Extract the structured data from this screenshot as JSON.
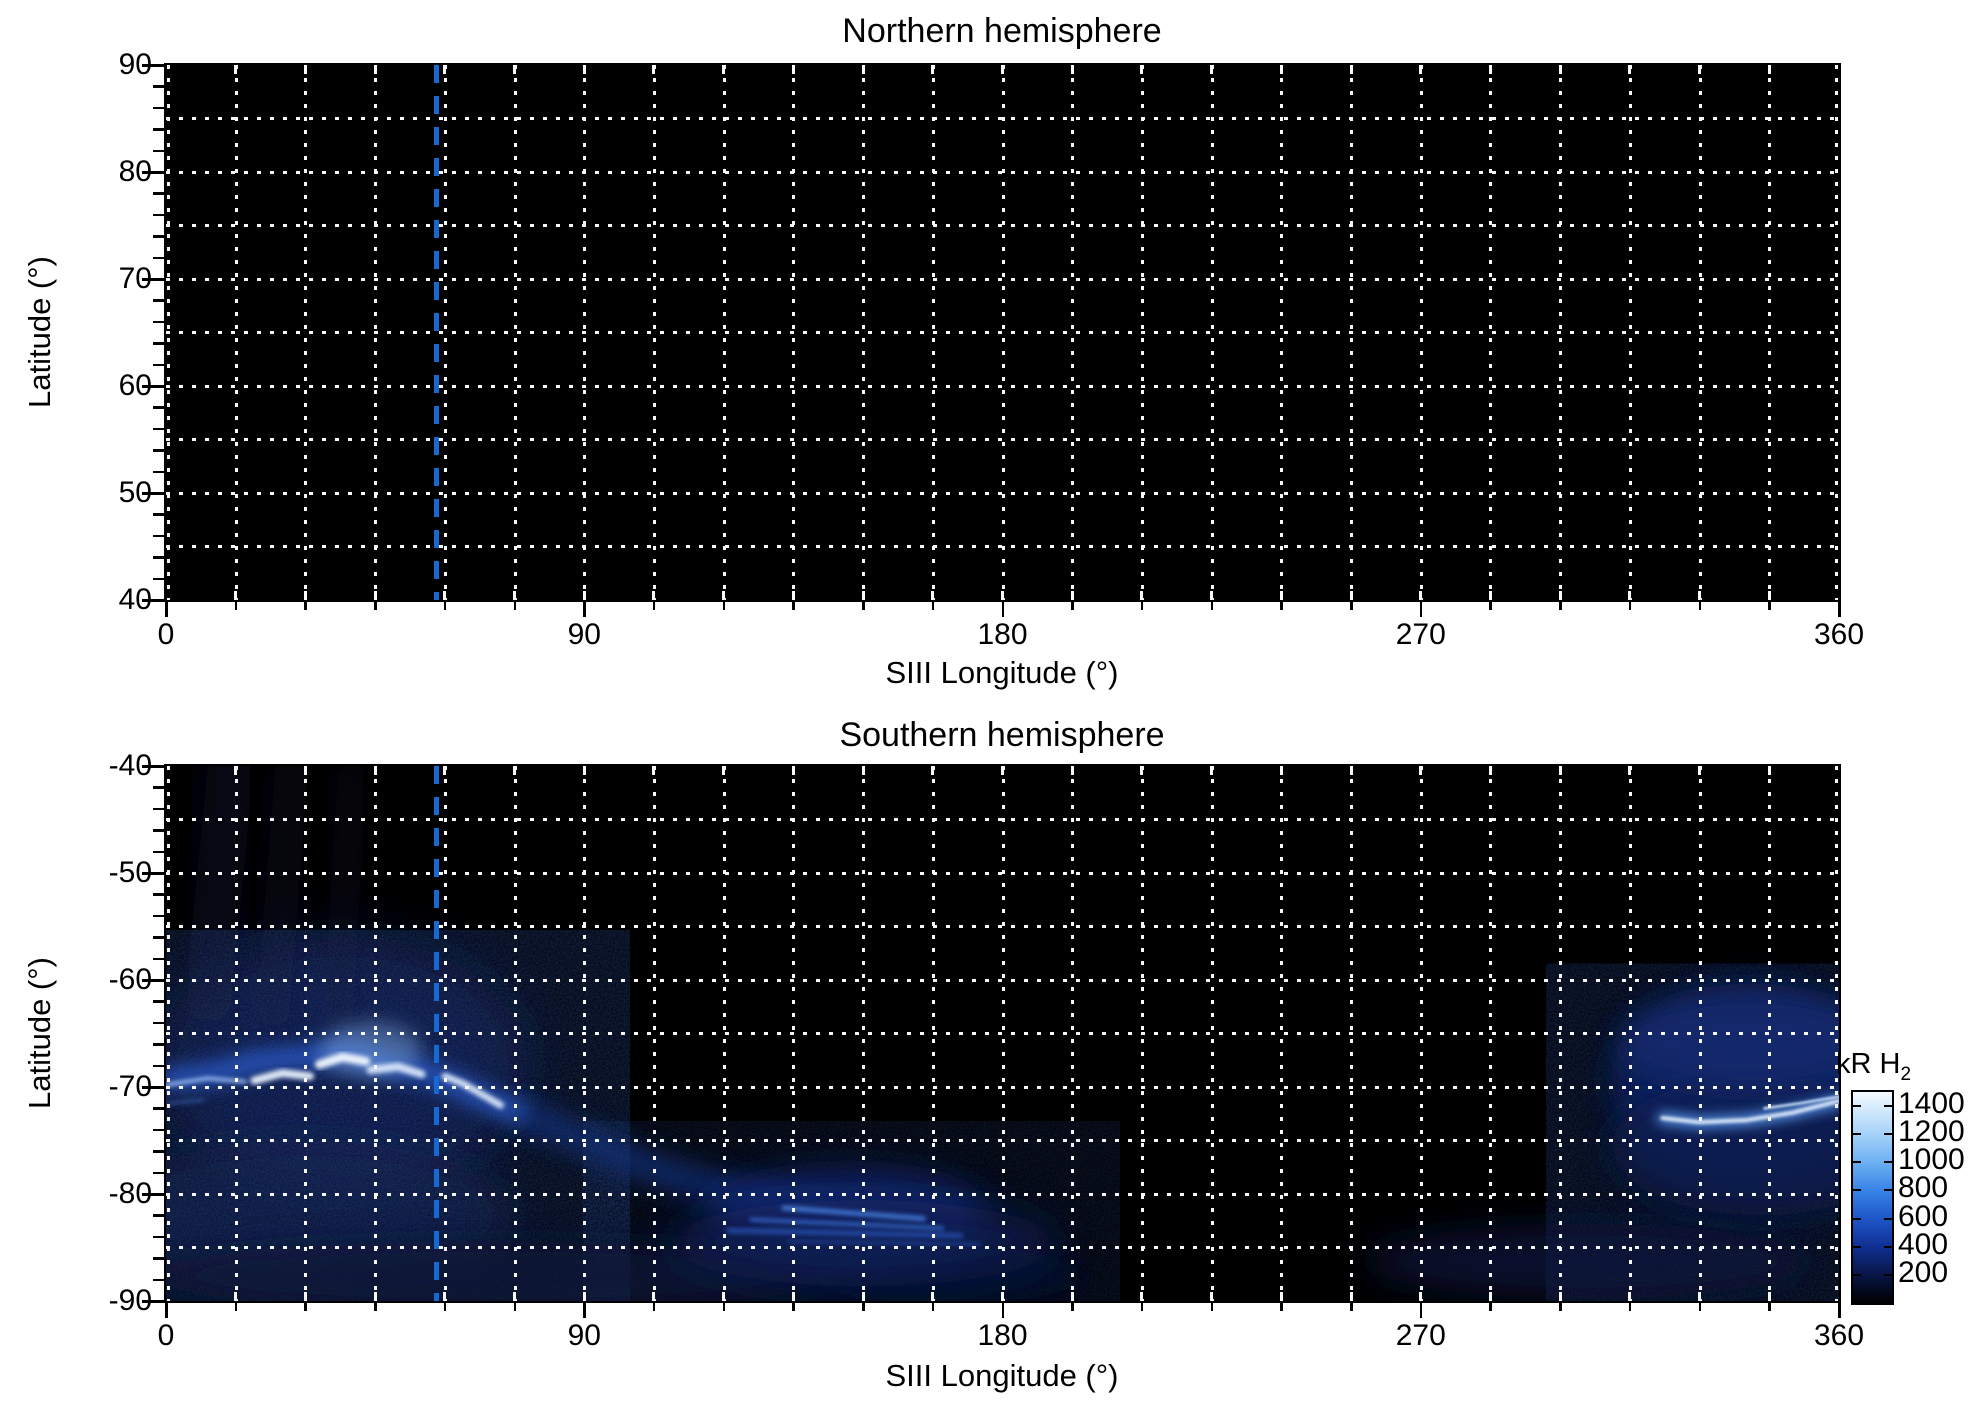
{
  "titles": {
    "north": "Northern hemisphere",
    "south": "Southern hemisphere"
  },
  "axes": {
    "xlabel": "SIII Longitude (°)",
    "ylabel": "Latitude (°)"
  },
  "north_axis": {
    "xticklabels": [
      "0",
      "90",
      "180",
      "270",
      "360"
    ],
    "yticklabels": [
      "90",
      "80",
      "70",
      "60",
      "50",
      "40"
    ]
  },
  "south_axis": {
    "xticklabels": [
      "0",
      "90",
      "180",
      "270",
      "360"
    ],
    "yticklabels": [
      "-40",
      "-50",
      "-60",
      "-70",
      "-80",
      "-90"
    ]
  },
  "colorbar": {
    "label_main": "kR H",
    "label_sub": "2",
    "ticklabels": [
      "1400",
      "1200",
      "1000",
      "800",
      "600",
      "400",
      "200"
    ]
  },
  "marker": {
    "color": "#1668d2"
  },
  "chart_data": {
    "type": "heatmap",
    "reference_longitude_deg": 58,
    "colorbar": {
      "label": "kR H2",
      "min": 0,
      "max": 1500,
      "tick_values": [
        1400,
        1200,
        1000,
        800,
        600,
        400,
        200
      ]
    },
    "panels": [
      {
        "title": "Northern hemisphere",
        "xlabel": "SIII Longitude (°)",
        "ylabel": "Latitude (°)",
        "xlim": [
          0,
          360
        ],
        "ylim": [
          40,
          90
        ],
        "xtick_values": [
          0,
          90,
          180,
          270,
          360
        ],
        "ytick_values": [
          90,
          80,
          70,
          60,
          50,
          40
        ],
        "grid_x_step_deg": 15,
        "grid_y_step_deg": 5,
        "emission": "none — panel is entirely black",
        "features": []
      },
      {
        "title": "Southern hemisphere",
        "xlabel": "SIII Longitude (°)",
        "ylabel": "Latitude (°)",
        "xlim": [
          0,
          360
        ],
        "ylim": [
          -90,
          -40
        ],
        "xtick_values": [
          0,
          90,
          180,
          270,
          360
        ],
        "ytick_values": [
          -40,
          -50,
          -60,
          -70,
          -80,
          -90
        ],
        "grid_x_step_deg": 15,
        "grid_y_step_deg": 5,
        "emission": "main auroral oval arc near lat -68/-72 over lon 0-75 (peaks ~1400 kR), diffuse band descending to lat -82 near lon 100-175 (~400-700 kR), bright arc lon 320-360 at lat -71/-73 (~1200 kR), faint emission near -85/-90",
        "features": [
          {
            "kind": "blob",
            "center": [
              38,
              -68
            ],
            "rlon": 40,
            "rlat": 12,
            "color": "#0b1640",
            "blur": 28,
            "opacity": 0.8
          },
          {
            "kind": "blob",
            "center": [
              30,
              -82
            ],
            "rlon": 45,
            "rlat": 7,
            "color": "#091338",
            "blur": 24,
            "opacity": 0.75
          },
          {
            "kind": "stroke",
            "points": [
              [
                14,
                -40
              ],
              [
                9,
                -62
              ]
            ],
            "width": 46,
            "color": "#070f26",
            "blur": 18,
            "opacity": 0.7
          },
          {
            "kind": "stroke",
            "points": [
              [
                27,
                -40.5
              ],
              [
                23,
                -63
              ]
            ],
            "width": 34,
            "color": "#081128",
            "blur": 16,
            "opacity": 0.55
          },
          {
            "kind": "stroke",
            "points": [
              [
                40,
                -41
              ],
              [
                37,
                -63.5
              ]
            ],
            "width": 30,
            "color": "#081128",
            "blur": 15,
            "opacity": 0.45
          },
          {
            "kind": "noise",
            "lon": [
              0,
              95
            ],
            "lat": [
              -57,
              -90
            ],
            "opacity": 0.5
          },
          {
            "kind": "noise",
            "lon": [
              300,
              360
            ],
            "lat": [
              -60,
              -90
            ],
            "opacity": 0.45
          },
          {
            "kind": "noise",
            "lon": [
              95,
              200
            ],
            "lat": [
              -74,
              -90
            ],
            "opacity": 0.3
          },
          {
            "kind": "blob",
            "center": [
              70,
              -87.6
            ],
            "rlon": 75,
            "rlat": 3.2,
            "color": "#081238",
            "blur": 16,
            "opacity": 0.8
          },
          {
            "kind": "blob",
            "center": [
              168,
              -87.6
            ],
            "rlon": 30,
            "rlat": 2.6,
            "color": "#060e2e",
            "blur": 14,
            "opacity": 0.7
          },
          {
            "kind": "blob",
            "center": [
              306,
              -86.3
            ],
            "rlon": 48,
            "rlat": 3.5,
            "color": "#081540",
            "blur": 17,
            "opacity": 0.7
          },
          {
            "kind": "stroke",
            "points": [
              [
                76,
                -72.4
              ],
              [
                88,
                -74.6
              ],
              [
                100,
                -76.9
              ],
              [
                112,
                -78.7
              ],
              [
                124,
                -80.1
              ],
              [
                136,
                -81.2
              ],
              [
                147,
                -82
              ]
            ],
            "width": 28,
            "color": "#16307e",
            "blur": 13,
            "opacity": 0.8
          },
          {
            "kind": "blob",
            "center": [
              147,
              -82.2
            ],
            "rlon": 30,
            "rlat": 4.2,
            "color": "#12297a",
            "blur": 18,
            "opacity": 0.9
          },
          {
            "kind": "blob",
            "center": [
              150,
              -84.6
            ],
            "rlon": 42,
            "rlat": 4,
            "color": "#0a1a50",
            "blur": 20,
            "opacity": 0.85
          },
          {
            "kind": "stroke",
            "points": [
              [
                133,
                -81.3
              ],
              [
                163,
                -82.3
              ]
            ],
            "width": 5,
            "color": "#4a86e8",
            "blur": 2,
            "opacity": 0.8
          },
          {
            "kind": "stroke",
            "points": [
              [
                126,
                -82.4
              ],
              [
                167,
                -83.2
              ]
            ],
            "width": 4,
            "color": "#3a72dc",
            "blur": 2,
            "opacity": 0.75
          },
          {
            "kind": "stroke",
            "points": [
              [
                121,
                -83.4
              ],
              [
                171,
                -83.9
              ]
            ],
            "width": 5,
            "color": "#2e5cc8",
            "blur": 2.5,
            "opacity": 0.7
          },
          {
            "kind": "stroke",
            "points": [
              [
                134,
                -84.4
              ],
              [
                175,
                -84.7
              ]
            ],
            "width": 4,
            "color": "#24489f",
            "blur": 2,
            "opacity": 0.6
          },
          {
            "kind": "stroke",
            "points": [
              [
                0,
                -69.3
              ],
              [
                10,
                -68.8
              ],
              [
                20,
                -67.6
              ],
              [
                30,
                -67.2
              ],
              [
                40,
                -66.8
              ],
              [
                48,
                -68
              ],
              [
                56,
                -68.6
              ],
              [
                63,
                -69.9
              ],
              [
                69,
                -71.2
              ],
              [
                75,
                -72.2
              ]
            ],
            "width": 20,
            "color": "#2f62d8",
            "blur": 10,
            "opacity": 0.85
          },
          {
            "kind": "blob",
            "center": [
              44,
              -66.5
            ],
            "rlon": 11,
            "rlat": 2.6,
            "color": "#8fc0f8",
            "blur": 9,
            "opacity": 0.4
          },
          {
            "kind": "stroke",
            "points": [
              [
                0,
                -69.8
              ],
              [
                9,
                -69.2
              ],
              [
                17,
                -69.5
              ]
            ],
            "width": 4,
            "color": "#a8ccff",
            "blur": 2,
            "opacity": 0.85
          },
          {
            "kind": "stroke",
            "points": [
              [
                0,
                -71.6
              ],
              [
                8,
                -71.2
              ]
            ],
            "width": 3,
            "color": "#4a78d8",
            "blur": 2,
            "opacity": 0.5
          },
          {
            "kind": "stroke",
            "points": [
              [
                19,
                -69.4
              ],
              [
                25,
                -68.7
              ],
              [
                31,
                -69
              ]
            ],
            "width": 8,
            "color": "#eaf4ff",
            "blur": 2.5,
            "opacity": 0.95
          },
          {
            "kind": "stroke",
            "points": [
              [
                33,
                -67.9
              ],
              [
                38,
                -67.2
              ],
              [
                43,
                -67.6
              ]
            ],
            "width": 9,
            "color": "#f2f8ff",
            "blur": 2.5,
            "opacity": 0.95
          },
          {
            "kind": "stroke",
            "points": [
              [
                44,
                -68.4
              ],
              [
                50,
                -68.1
              ],
              [
                55,
                -68.8
              ]
            ],
            "width": 8,
            "color": "#e4f0ff",
            "blur": 2.5,
            "opacity": 0.9
          },
          {
            "kind": "stroke",
            "points": [
              [
                60,
                -69
              ],
              [
                64,
                -69.7
              ],
              [
                68,
                -70.7
              ],
              [
                72,
                -71.7
              ]
            ],
            "width": 7,
            "color": "#e8f2ff",
            "blur": 2.5,
            "opacity": 0.9
          },
          {
            "kind": "blob",
            "center": [
              341,
              -69.3
            ],
            "rlon": 30,
            "rlat": 9,
            "color": "#0e2060",
            "blur": 16,
            "opacity": 0.92
          },
          {
            "kind": "blob",
            "center": [
              343,
              -75.5
            ],
            "rlon": 32,
            "rlat": 6.5,
            "color": "#0a1a50",
            "blur": 17,
            "opacity": 0.85
          },
          {
            "kind": "blob",
            "center": [
              341,
              -65.8
            ],
            "rlon": 28,
            "rlat": 4.5,
            "color": "#122a70",
            "blur": 15,
            "opacity": 0.8
          },
          {
            "kind": "stroke",
            "points": [
              [
                322,
                -72.9
              ],
              [
                330,
                -73.3
              ],
              [
                340,
                -73.1
              ],
              [
                350,
                -72.4
              ],
              [
                360,
                -71.3
              ]
            ],
            "width": 12,
            "color": "#5c9cf4",
            "blur": 6,
            "opacity": 0.9
          },
          {
            "kind": "stroke",
            "points": [
              [
                322,
                -72.9
              ],
              [
                330,
                -73.3
              ],
              [
                340,
                -73.1
              ],
              [
                350,
                -72.4
              ],
              [
                360,
                -71.3
              ]
            ],
            "width": 4,
            "color": "#eef6ff",
            "blur": 1.5,
            "opacity": 0.95
          },
          {
            "kind": "stroke",
            "points": [
              [
                344,
                -72
              ],
              [
                352,
                -71.5
              ],
              [
                360,
                -70.9
              ]
            ],
            "width": 3,
            "color": "#cfe4ff",
            "blur": 1,
            "opacity": 0.85
          }
        ]
      }
    ]
  }
}
